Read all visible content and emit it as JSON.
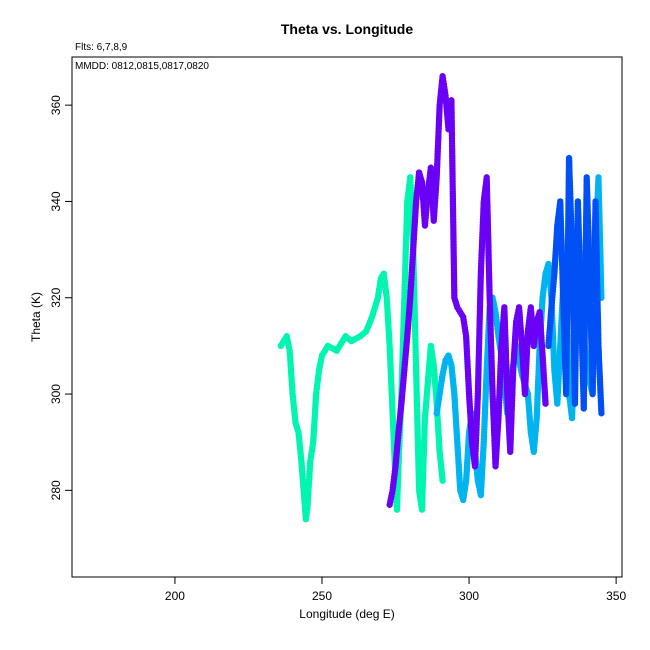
{
  "chart_data": {
    "type": "scatter",
    "title": "Theta vs. Longitude",
    "subtitle": "Flts: 6,7,8,9",
    "annotation": "MMDD: 0812,0815,0817,0820",
    "xlabel": "Longitude (deg E)",
    "ylabel": "Theta (K)",
    "xlim": [
      165,
      352
    ],
    "ylim": [
      262,
      370
    ],
    "xticks": [
      200,
      250,
      300,
      350
    ],
    "yticks": [
      280,
      300,
      320,
      340,
      360
    ],
    "grid": false,
    "series": [
      {
        "color": "#00f5b0",
        "points": [
          [
            236,
            310
          ],
          [
            237,
            311
          ],
          [
            238,
            312
          ],
          [
            239,
            309
          ],
          [
            240,
            300
          ],
          [
            241,
            294
          ],
          [
            242,
            292
          ],
          [
            243,
            286
          ],
          [
            244,
            278
          ],
          [
            244.5,
            274
          ],
          [
            245,
            276
          ],
          [
            246,
            286
          ],
          [
            247,
            290
          ],
          [
            248,
            300
          ],
          [
            249,
            305
          ],
          [
            250,
            308
          ],
          [
            252,
            310
          ],
          [
            255,
            309
          ],
          [
            258,
            312
          ],
          [
            260,
            311
          ],
          [
            263,
            312
          ],
          [
            265,
            313
          ],
          [
            267,
            316
          ],
          [
            269,
            320
          ],
          [
            270,
            324
          ],
          [
            271,
            325
          ],
          [
            272,
            320
          ],
          [
            273,
            310
          ],
          [
            274,
            296
          ],
          [
            275,
            282
          ],
          [
            275.5,
            276
          ],
          [
            276,
            285
          ],
          [
            277,
            300
          ],
          [
            278,
            320
          ],
          [
            279,
            340
          ],
          [
            280,
            345
          ],
          [
            281,
            330
          ],
          [
            282,
            305
          ],
          [
            283,
            280
          ],
          [
            284,
            276
          ],
          [
            285,
            295
          ],
          [
            287,
            310
          ],
          [
            288,
            306
          ],
          [
            289,
            298
          ],
          [
            290,
            288
          ],
          [
            291,
            282
          ]
        ]
      },
      {
        "color": "#00b4f0",
        "points": [
          [
            289,
            296
          ],
          [
            290,
            300
          ],
          [
            291,
            304
          ],
          [
            292,
            307
          ],
          [
            293,
            308
          ],
          [
            294,
            306
          ],
          [
            295,
            300
          ],
          [
            296,
            290
          ],
          [
            297,
            280
          ],
          [
            298,
            278
          ],
          [
            299,
            282
          ],
          [
            300,
            292
          ],
          [
            301,
            296
          ],
          [
            302,
            288
          ],
          [
            303,
            282
          ],
          [
            304,
            279
          ],
          [
            305,
            290
          ],
          [
            306,
            305
          ],
          [
            307,
            318
          ],
          [
            308,
            320
          ],
          [
            309,
            317
          ],
          [
            310,
            312
          ],
          [
            311,
            308
          ],
          [
            312,
            302
          ],
          [
            313,
            296
          ],
          [
            314,
            300
          ],
          [
            315,
            306
          ],
          [
            316,
            310
          ],
          [
            318,
            304
          ],
          [
            320,
            300
          ],
          [
            321,
            292
          ],
          [
            322,
            288
          ],
          [
            323,
            295
          ],
          [
            324,
            310
          ],
          [
            325,
            320
          ],
          [
            326,
            325
          ],
          [
            327,
            327
          ],
          [
            328,
            320
          ],
          [
            329,
            305
          ],
          [
            330,
            298
          ],
          [
            331,
            310
          ],
          [
            332,
            322
          ],
          [
            333,
            318
          ],
          [
            334,
            300
          ],
          [
            335,
            295
          ],
          [
            336,
            310
          ],
          [
            338,
            320
          ],
          [
            340,
            305
          ],
          [
            342,
            300
          ],
          [
            343,
            330
          ],
          [
            344,
            345
          ],
          [
            345,
            320
          ]
        ]
      },
      {
        "color": "#6a00f5",
        "points": [
          [
            273,
            277
          ],
          [
            274,
            280
          ],
          [
            275,
            285
          ],
          [
            276,
            292
          ],
          [
            277,
            298
          ],
          [
            278,
            305
          ],
          [
            279,
            312
          ],
          [
            280,
            320
          ],
          [
            281,
            330
          ],
          [
            282,
            340
          ],
          [
            283,
            346
          ],
          [
            284,
            344
          ],
          [
            285,
            335
          ],
          [
            286,
            342
          ],
          [
            287,
            347
          ],
          [
            288,
            336
          ],
          [
            289,
            345
          ],
          [
            290,
            360
          ],
          [
            291,
            366
          ],
          [
            292,
            362
          ],
          [
            293,
            355
          ],
          [
            294,
            361
          ],
          [
            295,
            320
          ],
          [
            296,
            318
          ],
          [
            297,
            317
          ],
          [
            298,
            316
          ],
          [
            299,
            312
          ],
          [
            300,
            300
          ],
          [
            301,
            290
          ],
          [
            302,
            285
          ],
          [
            303,
            300
          ],
          [
            304,
            325
          ],
          [
            305,
            340
          ],
          [
            306,
            345
          ],
          [
            307,
            320
          ],
          [
            308,
            300
          ],
          [
            309,
            285
          ],
          [
            310,
            295
          ],
          [
            311,
            310
          ],
          [
            312,
            318
          ],
          [
            313,
            300
          ],
          [
            314,
            288
          ],
          [
            315,
            305
          ],
          [
            316,
            315
          ],
          [
            317,
            318
          ],
          [
            318,
            310
          ],
          [
            319,
            300
          ],
          [
            320,
            313
          ],
          [
            321,
            318
          ],
          [
            322,
            310
          ],
          [
            323,
            315
          ],
          [
            324,
            317
          ],
          [
            325,
            308
          ],
          [
            326,
            298
          ]
        ]
      },
      {
        "color": "#0050f5",
        "points": [
          [
            327,
            310
          ],
          [
            328,
            318
          ],
          [
            329,
            325
          ],
          [
            330,
            335
          ],
          [
            331,
            340
          ],
          [
            332,
            320
          ],
          [
            333,
            300
          ],
          [
            334,
            349
          ],
          [
            335,
            330
          ],
          [
            336,
            298
          ],
          [
            337,
            340
          ],
          [
            338,
            320
          ],
          [
            339,
            297
          ],
          [
            340,
            345
          ],
          [
            341,
            325
          ],
          [
            342,
            300
          ],
          [
            343,
            340
          ],
          [
            344,
            310
          ],
          [
            345,
            296
          ]
        ]
      }
    ]
  }
}
